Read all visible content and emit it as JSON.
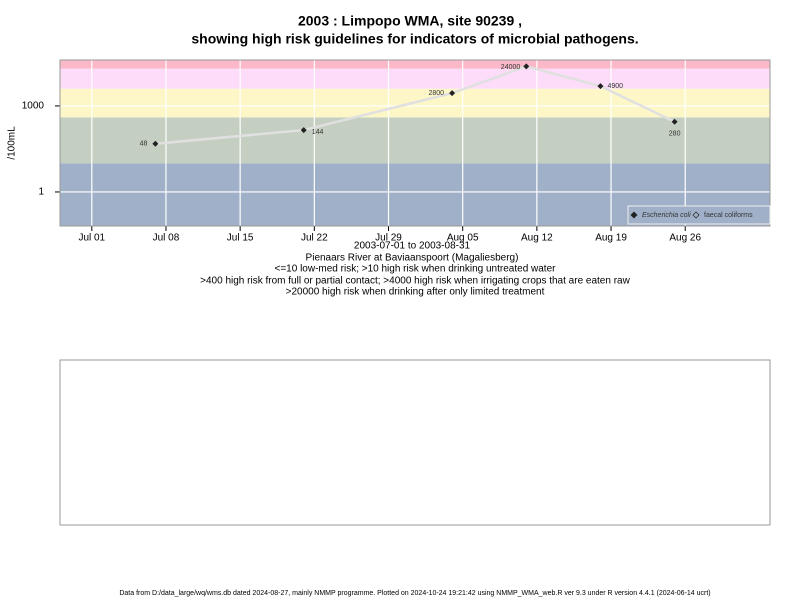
{
  "chart_data": {
    "type": "line",
    "title": "2003 : Limpopo WMA, site 90239 ,",
    "subtitle": "showing high risk guidelines for indicators of microbial pathogens.",
    "ylabel": "/100mL",
    "xlabel": "2003-07-01 to 2003-08-31",
    "notes": [
      "Pienaars River at Baviaanspoort (Magaliesberg)",
      "<=10 low-med risk; >10 high risk when drinking untreated water",
      ">400 high risk from full or partial contact; >4000 high risk when irrigating crops that are eaten raw",
      ">20000 high risk when drinking after only limited treatment"
    ],
    "footer": "Data from D:/data_large/wq/wms.db dated 2024-08-27, mainly NMMP programme. Plotted on 2024-10-24 19:21:42 using NMMP_WMA_web.R ver 9.3 under R version 4.4.1 (2024-06-14 ucrt)",
    "log_y": true,
    "grid": true,
    "legend": "bottom-right",
    "x": [
      "2003-07-07",
      "2003-07-21",
      "2003-08-04",
      "2003-08-11",
      "2003-08-18",
      "2003-08-25"
    ],
    "series": [
      {
        "name": "Escherichia coli",
        "color": "#222222",
        "line_color": "#e0e0e0",
        "values": [
          48,
          144,
          2800,
          24000,
          4900,
          280
        ]
      },
      {
        "name": "faecal coliforms",
        "color": "#222222",
        "values": [
          null,
          null,
          null,
          null,
          null,
          null
        ]
      }
    ],
    "bands": [
      {
        "to": 10,
        "color": "#a0b0c8"
      },
      {
        "to": 400,
        "color": "#c4cfc2"
      },
      {
        "to": 4000,
        "color": "#fdf7c8"
      },
      {
        "to": 20000,
        "color": "#fcdcf8"
      },
      {
        "to": 40000,
        "color": "#fbb8c8"
      }
    ],
    "xlim": [
      "2003-06-28",
      "2003-09-03"
    ],
    "xticks": [
      {
        "value": "2003-07-01",
        "label": "Jul 01"
      },
      {
        "value": "2003-07-08",
        "label": "Jul 08"
      },
      {
        "value": "2003-07-15",
        "label": "Jul 15"
      },
      {
        "value": "2003-07-22",
        "label": "Jul 22"
      },
      {
        "value": "2003-07-29",
        "label": "Jul 29"
      },
      {
        "value": "2003-08-05",
        "label": "Aug 05"
      },
      {
        "value": "2003-08-12",
        "label": "Aug 12"
      },
      {
        "value": "2003-08-19",
        "label": "Aug 19"
      },
      {
        "value": "2003-08-26",
        "label": "Aug 26"
      }
    ],
    "ylim": [
      0.065,
      40000
    ],
    "yticks": [
      1,
      1000
    ]
  }
}
